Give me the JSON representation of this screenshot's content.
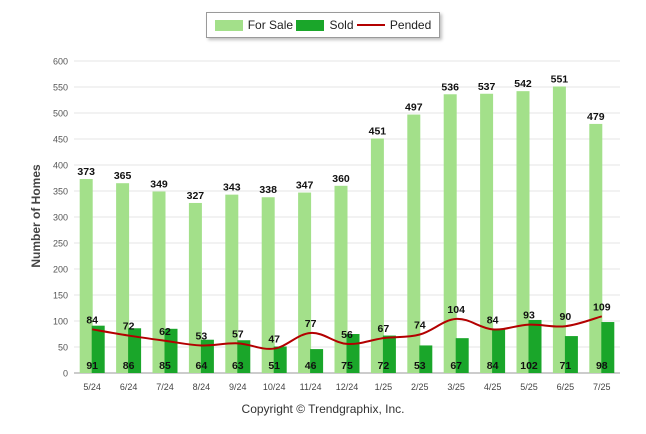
{
  "chart_data": {
    "type": "bar",
    "ylabel": "Number of Homes",
    "xlabel": "",
    "ylim": [
      0,
      600
    ],
    "yticks": [
      0,
      50,
      100,
      150,
      200,
      250,
      300,
      350,
      400,
      450,
      500,
      550,
      600
    ],
    "grid": true,
    "legend_position": "top-center",
    "categories": [
      "5/24",
      "6/24",
      "7/24",
      "8/24",
      "9/24",
      "10/24",
      "11/24",
      "12/24",
      "1/25",
      "2/25",
      "3/25",
      "4/25",
      "5/25",
      "6/25",
      "7/25"
    ],
    "series": [
      {
        "name": "For Sale",
        "type": "bar",
        "color": "#a3e08a",
        "values": [
          373,
          365,
          349,
          327,
          343,
          338,
          347,
          360,
          451,
          497,
          536,
          537,
          542,
          551,
          479
        ]
      },
      {
        "name": "Sold",
        "type": "bar",
        "color": "#1aa62a",
        "values": [
          91,
          86,
          85,
          64,
          63,
          51,
          46,
          75,
          72,
          53,
          67,
          84,
          102,
          71,
          98
        ]
      },
      {
        "name": "Pended",
        "type": "line",
        "color": "#b30000",
        "values": [
          84,
          72,
          62,
          53,
          57,
          47,
          77,
          56,
          67,
          74,
          104,
          84,
          93,
          90,
          109
        ]
      }
    ]
  },
  "legend": {
    "for_sale": "For Sale",
    "sold": "Sold",
    "pended": "Pended"
  },
  "copyright": "Copyright © Trendgraphix, Inc."
}
